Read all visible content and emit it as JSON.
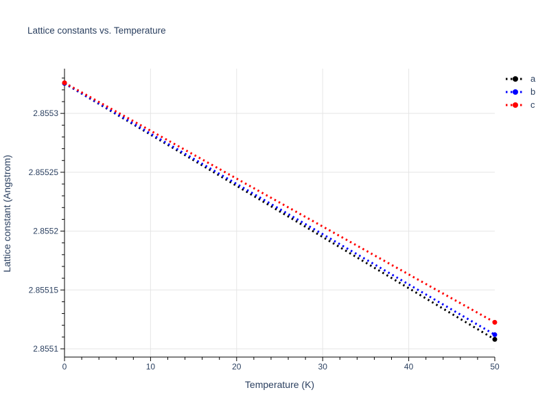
{
  "chart_data": {
    "type": "line",
    "title": "Lattice constants vs. Temperature",
    "xlabel": "Temperature (K)",
    "ylabel": "Lattice constant (Angstrom)",
    "x_range": [
      0,
      50
    ],
    "y_range": [
      2.855093,
      2.855338
    ],
    "x_ticks": [
      {
        "value": 0,
        "label": "0"
      },
      {
        "value": 10,
        "label": "10"
      },
      {
        "value": 20,
        "label": "20"
      },
      {
        "value": 30,
        "label": "30"
      },
      {
        "value": 40,
        "label": "40"
      },
      {
        "value": 50,
        "label": "50"
      }
    ],
    "y_ticks": [
      {
        "value": 2.8551,
        "label": "2.8551"
      },
      {
        "value": 2.85515,
        "label": "2.85515"
      },
      {
        "value": 2.8552,
        "label": "2.8552"
      },
      {
        "value": 2.85525,
        "label": "2.85525"
      },
      {
        "value": 2.8553,
        "label": "2.8553"
      }
    ],
    "x_minor_step": 2,
    "y_minor_step": 1e-05,
    "grid": "on",
    "legend_position": "outside-top-right",
    "line_style": "dotted",
    "series": [
      {
        "name": "a",
        "color": "#000000",
        "x": [
          0,
          50
        ],
        "y": [
          2.8553255,
          2.855108
        ]
      },
      {
        "name": "b",
        "color": "#0000ff",
        "x": [
          0,
          50
        ],
        "y": [
          2.8553255,
          2.855112
        ]
      },
      {
        "name": "c",
        "color": "#ff0000",
        "x": [
          0,
          50
        ],
        "y": [
          2.855326,
          2.8551225
        ]
      }
    ],
    "colors": {
      "text": "#2a3f5f",
      "axis": "#000000",
      "grid": "#e5e5e5",
      "background": "#ffffff"
    }
  }
}
